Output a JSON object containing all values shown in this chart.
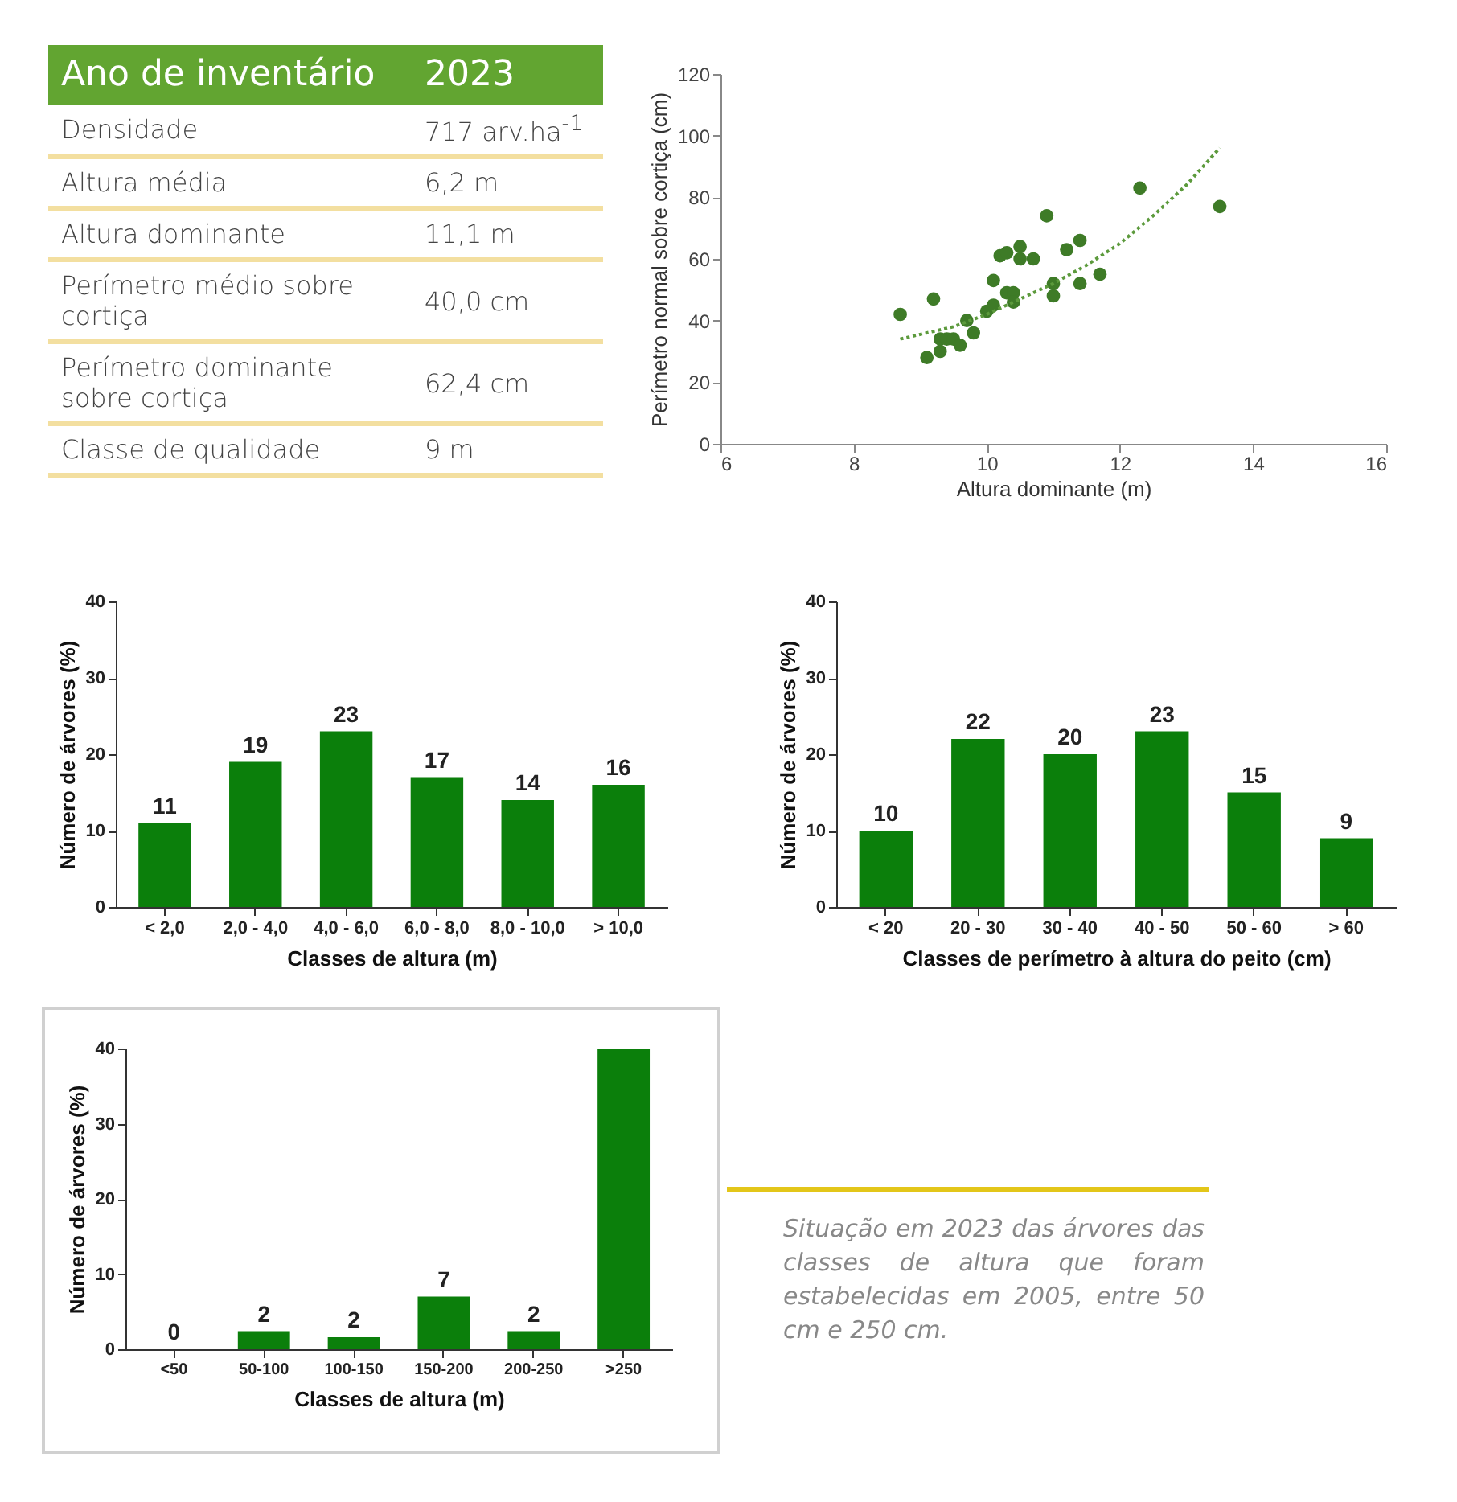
{
  "chart_data": [
    {
      "type": "other",
      "title": "Ano de inventário",
      "subtitle": "2023",
      "annotations": [
        "Densidade",
        "717 arv.ha$^{-1}$",
        "Altura média",
        "6,2 m",
        "Altura dominante",
        "11,1 m",
        "Perímetro médio sobre cortiça",
        "40,0 cm",
        "Perímetro dominante sobre cortiça",
        "62,4 cm",
        "Classe de qualidade",
        "9 m"
      ]
    },
    {
      "type": "scatter",
      "xlabel": "Altura dominante (m)",
      "ylabel": "Perímetro normal sobre cortiça (cm)",
      "xlim": [
        6,
        16
      ],
      "xticks": [
        6,
        8,
        10,
        12,
        14,
        16
      ],
      "ylim": [
        0,
        120
      ],
      "yticks": [
        0,
        20,
        40,
        60,
        80,
        100,
        120
      ],
      "grid": false,
      "series": [
        {
          "color": "#3e7b27",
          "marker": "circle",
          "x": [
            8.7,
            9.2,
            9.1,
            9.3,
            9.3,
            9.4,
            9.5,
            9.6,
            9.7,
            9.8,
            10.0,
            10.1,
            10.1,
            10.2,
            10.3,
            10.3,
            10.4,
            10.4,
            10.5,
            10.5,
            10.7,
            10.9,
            11.0,
            11.0,
            11.2,
            11.4,
            11.4,
            11.7,
            12.3,
            13.5
          ],
          "values": [
            42,
            47,
            28,
            30,
            34,
            34,
            34,
            32,
            40,
            36,
            43,
            45,
            53,
            61,
            62,
            49,
            49,
            46,
            64,
            60,
            60,
            74,
            52,
            48,
            63,
            66,
            52,
            55,
            83,
            77
          ]
        },
        {
          "type": "line",
          "line_style": "dotted",
          "color": "#5c9a3c",
          "x": [
            8.7,
            9.5,
            10,
            10.5,
            11,
            11.5,
            12,
            12.5,
            13,
            13.5
          ],
          "values": [
            34,
            38,
            42,
            47,
            52,
            58,
            65,
            74,
            84,
            96
          ]
        }
      ]
    },
    {
      "type": "bar",
      "xlabel": "Classes de altura (m)",
      "ylabel": "Número de árvores (%)",
      "categories": [
        "< 2,0",
        "2,0 - 4,0",
        "4,0 - 6,0",
        "6,0 - 8,0",
        "8,0 - 10,0",
        "> 10,0"
      ],
      "values": [
        11,
        19,
        23,
        17,
        14,
        16
      ],
      "color": "#0b7f0b",
      "ylim": [
        0,
        40
      ],
      "yticks": [
        0,
        10,
        20,
        30,
        40
      ],
      "data_labels": true,
      "grid": false
    },
    {
      "type": "bar",
      "xlabel": "Classes de perímetro à altura do peito (cm)",
      "ylabel": "Número de árvores (%)",
      "categories": [
        "< 20",
        "20 - 30",
        "30 - 40",
        "40 - 50",
        "50 - 60",
        "> 60"
      ],
      "values": [
        10,
        22,
        20,
        23,
        15,
        9
      ],
      "color": "#0b7f0b",
      "ylim": [
        0,
        40
      ],
      "yticks": [
        0,
        10,
        20,
        30,
        40
      ],
      "data_labels": true,
      "grid": false
    },
    {
      "type": "bar",
      "xlabel": "Classes de altura (m)",
      "ylabel": "Número de árvores (%)",
      "categories": [
        "<50",
        "50-100",
        "100-150",
        "150-200",
        "200-250",
        ">250"
      ],
      "values": [
        0,
        2.4,
        1.6,
        7,
        2.4,
        40
      ],
      "value_labels": [
        "0",
        "2",
        "2",
        "7",
        "2",
        null
      ],
      "color": "#0b7f0b",
      "ylim": [
        0,
        40
      ],
      "yticks": [
        0,
        10,
        20,
        30,
        40
      ],
      "grid": false,
      "annotations": [
        "Situação em 2023 das árvores das classes de altura que foram estabelecidas em 2005, entre 50 cm e 250 cm."
      ]
    }
  ]
}
